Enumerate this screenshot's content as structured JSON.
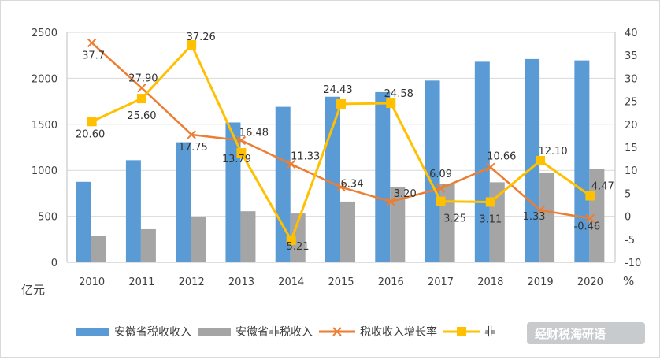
{
  "chart_data": {
    "type": "bar",
    "categories": [
      "2010",
      "2011",
      "2012",
      "2013",
      "2014",
      "2015",
      "2016",
      "2017",
      "2018",
      "2019",
      "2020"
    ],
    "y_left_ticks": [
      "0",
      "500",
      "1000",
      "1500",
      "2000",
      "2500"
    ],
    "y_right_ticks": [
      "-10",
      "-5",
      "0",
      "5",
      "10",
      "15",
      "20",
      "25",
      "30",
      "35",
      "40"
    ],
    "ylim": [
      0,
      2500
    ],
    "y2lim": [
      -10,
      40
    ],
    "ylabel": "亿元",
    "y2label": "%",
    "grid": true,
    "legend_position": "bottom",
    "series": [
      {
        "name": "安徽省税收收入",
        "kind": "bar",
        "axis": "left",
        "color": "#5b9bd5",
        "values": [
          875,
          1110,
          1305,
          1520,
          1690,
          1800,
          1850,
          1975,
          2180,
          2210,
          2195
        ]
      },
      {
        "name": "安徽省非税收入",
        "kind": "bar",
        "axis": "left",
        "color": "#a5a5a5",
        "values": [
          285,
          360,
          490,
          555,
          530,
          660,
          820,
          855,
          870,
          975,
          1015
        ]
      },
      {
        "name": "税收收入增长率",
        "kind": "line",
        "axis": "right",
        "color": "#ed7d31",
        "marker": "x",
        "values": [
          37.7,
          27.9,
          17.75,
          16.48,
          11.33,
          6.34,
          3.2,
          6.09,
          10.66,
          1.33,
          -0.46
        ],
        "labels": [
          "37.7",
          "27.90",
          "17.75",
          "16.48",
          "11.33",
          "6.34",
          "3.20",
          "6.09",
          "10.66",
          "1.33",
          "-0.46"
        ]
      },
      {
        "name": "非税收入增长率",
        "kind": "line",
        "axis": "right",
        "color": "#ffc000",
        "marker": "square",
        "values": [
          20.6,
          25.6,
          37.26,
          13.79,
          -5.21,
          24.43,
          24.58,
          3.25,
          3.11,
          12.1,
          4.47
        ],
        "labels": [
          "20.60",
          "25.60",
          "37.26",
          "13.79",
          "-5.21",
          "24.43",
          "24.58",
          "3.25",
          "3.11",
          "12.10",
          "4.47"
        ]
      }
    ],
    "legend_entries": [
      "安徽省税收收入",
      "安徽省非税收入",
      "税收收入增长率",
      "非"
    ]
  },
  "watermark": "经财税海研语"
}
